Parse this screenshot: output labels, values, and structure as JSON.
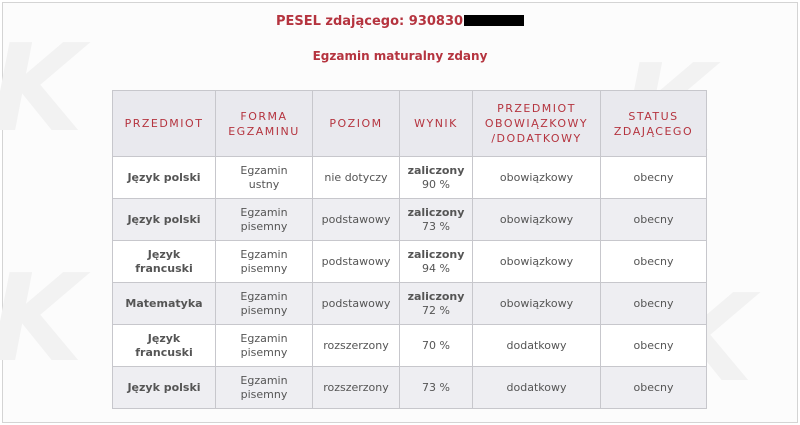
{
  "header": {
    "pesel_label": "PESEL zdającego: 930830",
    "result": "Egzamin maturalny zdany"
  },
  "table": {
    "headers": [
      {
        "line1": "PRZEDMIOT",
        "line2": "",
        "line3": ""
      },
      {
        "line1": "FORMA",
        "line2": "EGZAMINU",
        "line3": ""
      },
      {
        "line1": "POZIOM",
        "line2": "",
        "line3": ""
      },
      {
        "line1": "WYNIK",
        "line2": "",
        "line3": ""
      },
      {
        "line1": "PRZEDMIOT",
        "line2": "OBOWIĄZKOWY",
        "line3": "/DODATKOWY"
      },
      {
        "line1": "STATUS",
        "line2": "ZDAJĄCEGO",
        "line3": ""
      }
    ],
    "rows": [
      {
        "subject1": "Język polski",
        "subject2": "",
        "form1": "Egzamin",
        "form2": "ustny",
        "level": "nie dotyczy",
        "result_label": "zaliczony",
        "result_pct": "90 %",
        "type": "obowiązkowy",
        "status": "obecny"
      },
      {
        "subject1": "Język polski",
        "subject2": "",
        "form1": "Egzamin",
        "form2": "pisemny",
        "level": "podstawowy",
        "result_label": "zaliczony",
        "result_pct": "73 %",
        "type": "obowiązkowy",
        "status": "obecny"
      },
      {
        "subject1": "Język",
        "subject2": "francuski",
        "form1": "Egzamin",
        "form2": "pisemny",
        "level": "podstawowy",
        "result_label": "zaliczony",
        "result_pct": "94 %",
        "type": "obowiązkowy",
        "status": "obecny"
      },
      {
        "subject1": "Matematyka",
        "subject2": "",
        "form1": "Egzamin",
        "form2": "pisemny",
        "level": "podstawowy",
        "result_label": "zaliczony",
        "result_pct": "72 %",
        "type": "obowiązkowy",
        "status": "obecny"
      },
      {
        "subject1": "Język",
        "subject2": "francuski",
        "form1": "Egzamin",
        "form2": "pisemny",
        "level": "rozszerzony",
        "result_label": "",
        "result_pct": "70 %",
        "type": "dodatkowy",
        "status": "obecny"
      },
      {
        "subject1": "Język polski",
        "subject2": "",
        "form1": "Egzamin",
        "form2": "pisemny",
        "level": "rozszerzony",
        "result_label": "",
        "result_pct": "73 %",
        "type": "dodatkowy",
        "status": "obecny"
      }
    ]
  },
  "colors": {
    "accent_red": "#b5343f",
    "header_bg": "#e9e9ee",
    "stripe_bg": "#eeeef2"
  }
}
